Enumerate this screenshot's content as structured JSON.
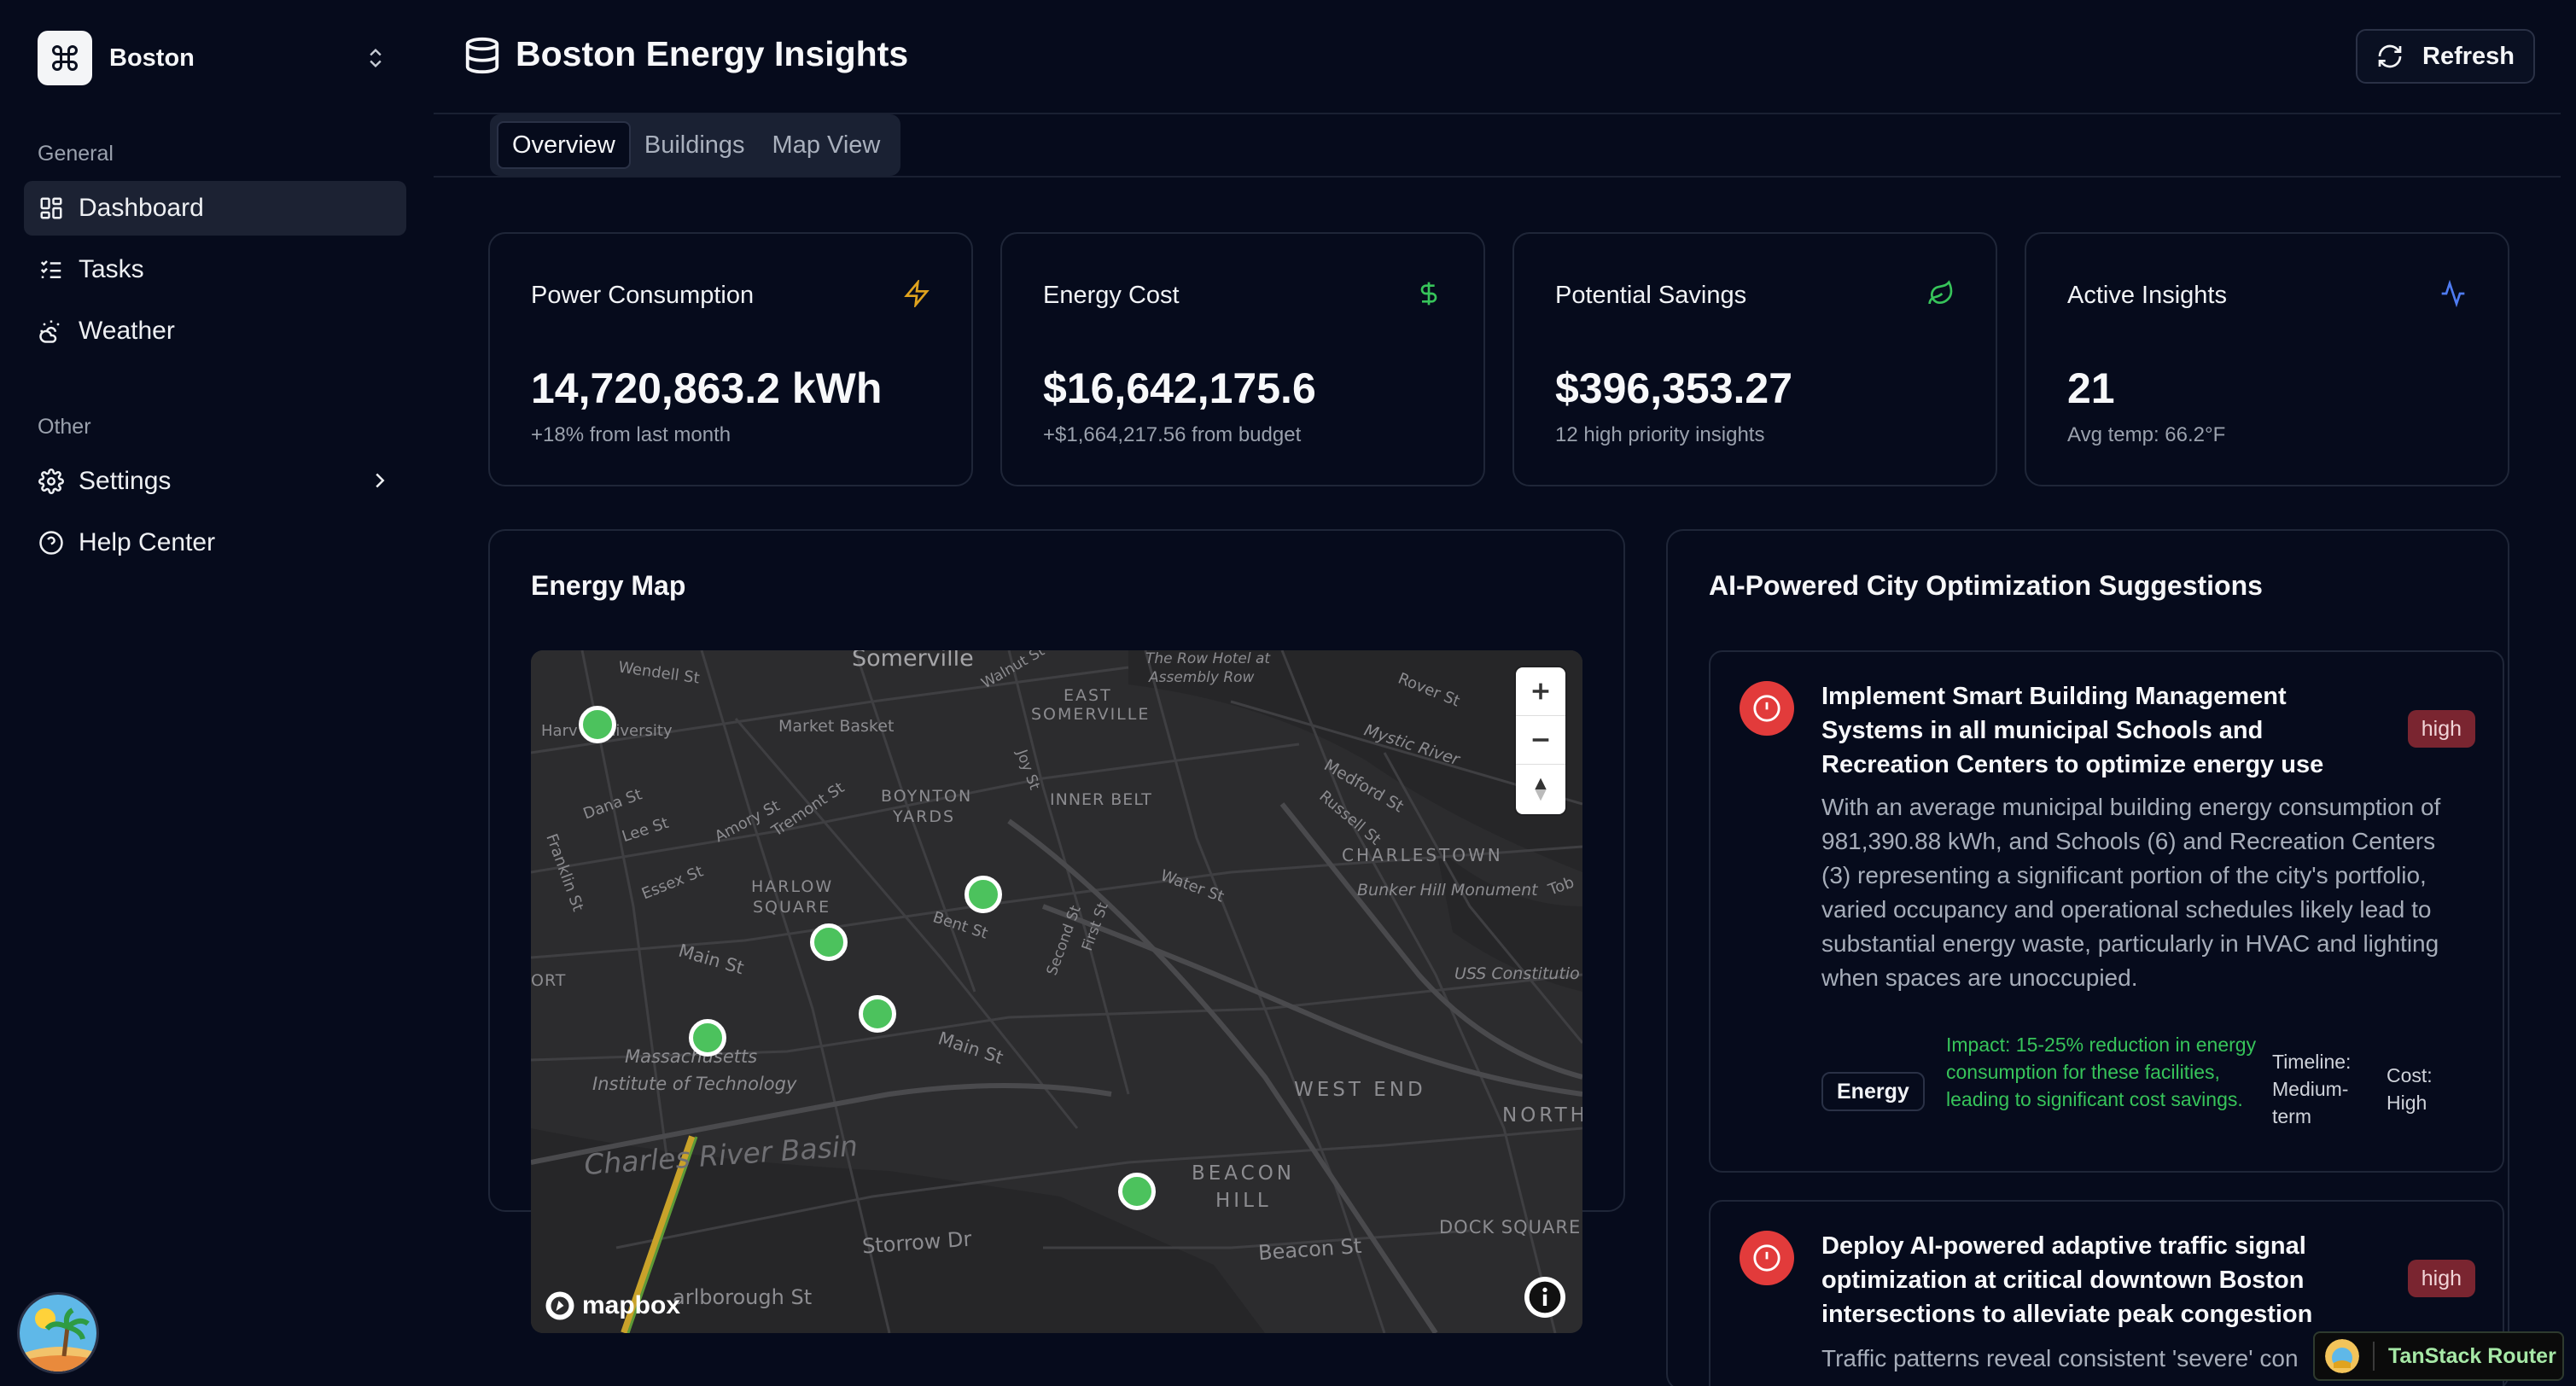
{
  "workspace": {
    "name": "Boston"
  },
  "sidebar": {
    "groups": [
      {
        "label": "General"
      },
      {
        "label": "Other"
      }
    ],
    "items": [
      {
        "label": "Dashboard",
        "icon": "dashboard-icon",
        "active": true
      },
      {
        "label": "Tasks",
        "icon": "tasks-icon"
      },
      {
        "label": "Weather",
        "icon": "weather-icon"
      },
      {
        "label": "Settings",
        "icon": "settings-icon"
      },
      {
        "label": "Help Center",
        "icon": "help-icon"
      }
    ]
  },
  "header": {
    "title": "Boston Energy Insights",
    "refresh_label": "Refresh"
  },
  "tabs": [
    {
      "label": "Overview",
      "active": true
    },
    {
      "label": "Buildings"
    },
    {
      "label": "Map View"
    }
  ],
  "stats": [
    {
      "title": "Power Consumption",
      "value": "14,720,863.2 kWh",
      "sub": "+18% from last month",
      "icon": "zap-icon",
      "color": "#e0a31e"
    },
    {
      "title": "Energy Cost",
      "value": "$16,642,175.6",
      "sub": "+$1,664,217.56 from budget",
      "icon": "dollar-icon",
      "color": "#37c45a"
    },
    {
      "title": "Potential Savings",
      "value": "$396,353.27",
      "sub": "12 high priority insights",
      "icon": "leaf-icon",
      "color": "#37c45a"
    },
    {
      "title": "Active Insights",
      "value": "21",
      "sub": "Avg temp: 66.2°F",
      "icon": "activity-icon",
      "color": "#4f7cf3"
    }
  ],
  "map": {
    "title": "Energy Map",
    "attribution": "mapbox",
    "labels": {
      "somerville": "Somerville",
      "wendell": "Wendell St",
      "harvard": "Harv",
      "university": "niversity",
      "market": "Market Basket",
      "rowhotel1": "The Row Hotel at",
      "rowhotel2": "Assembly Row",
      "walnut": "Walnut St",
      "east": "EAST",
      "somerville2": "SOMERVILLE",
      "rover": "Rover St",
      "mystic": "Mystic River",
      "dana": "Dana St",
      "lee": "Lee St",
      "amory": "Amory St",
      "tremont": "Tremont St",
      "boynton1": "BOYNTON",
      "boynton2": "YARDS",
      "joy": "Joy St",
      "innerbelt": "INNER BELT",
      "medford": "Medford St",
      "russell": "Russell St",
      "franklin": "Franklin St",
      "essex": "Essex St",
      "harlow1": "HARLOW",
      "harlow2": "SQUARE",
      "charlestown": "CHARLESTOWN",
      "bunker": "Bunker Hill Monument",
      "tob": "Tob",
      "water": "Water St",
      "bent": "Bent St",
      "second": "Second St",
      "first": "First St",
      "main1": "Main St",
      "main2": "Main St",
      "ort": "ORT",
      "uss": "USS Constitutio",
      "mass": "Massachusetts",
      "mit": "Institute of Technology",
      "westend": "WEST END",
      "north": "NORTH",
      "basin": "Charles River Basin",
      "beacon1": "BEACON",
      "beacon2": "HILL",
      "dock": "DOCK SQUARE",
      "storrow": "Storrow Dr",
      "beaconst": "Beacon St",
      "marlborough": "arlborough St"
    }
  },
  "suggestions": {
    "title": "AI-Powered City Optimization Suggestions",
    "items": [
      {
        "title": "Implement Smart Building Management Systems in all municipal Schools and Recreation Centers to optimize energy use",
        "priority": "high",
        "description": "With an average municipal building energy consumption of 981,390.88 kWh, and Schools (6) and Recreation Centers (3) representing a significant portion of the city's portfolio, varied occupancy and operational schedules likely lead to substantial energy waste, particularly in HVAC and lighting when spaces are unoccupied.",
        "category": "Energy",
        "impact": "Impact: 15-25% reduction in energy consumption for these facilities, leading to significant cost savings.",
        "timeline": "Timeline: Medium-term",
        "cost": "Cost: High"
      },
      {
        "title": "Deploy AI-powered adaptive traffic signal optimization at critical downtown Boston intersections to alleviate peak congestion",
        "priority": "high",
        "description": "Traffic patterns reveal consistent 'severe' con"
      }
    ]
  },
  "devtools": {
    "label": "TanStack Router"
  }
}
